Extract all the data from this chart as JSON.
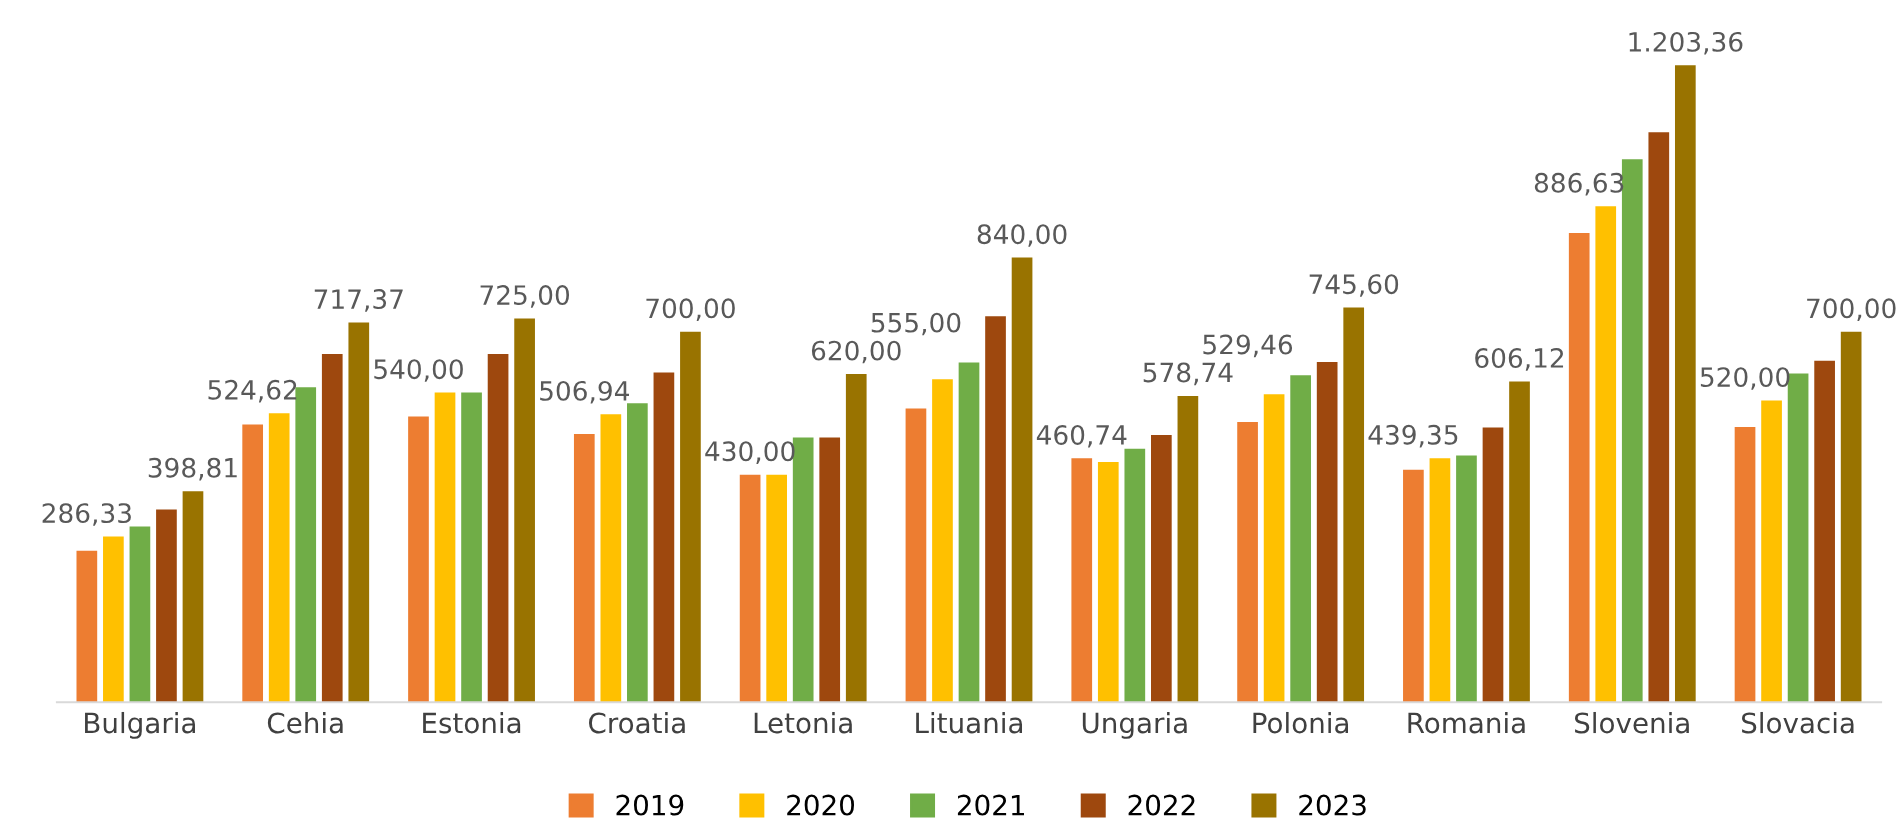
{
  "chart_data": {
    "type": "bar",
    "categories": [
      "Bulgaria",
      "Cehia",
      "Estonia",
      "Croatia",
      "Letonia",
      "Lituania",
      "Ungaria",
      "Polonia",
      "Romania",
      "Slovenia",
      "Slovacia"
    ],
    "legend": "bottom",
    "grid": false,
    "series": [
      {
        "name": "2019",
        "color": "#ed7d31",
        "values": [
          286.33,
          524.62,
          540.0,
          506.94,
          430.0,
          555.0,
          460.74,
          529.46,
          439.35,
          886.63,
          520.0
        ],
        "value_labels": [
          "286,33",
          "524,62",
          "540,00",
          "506,94",
          "430,00",
          "555,00",
          "460,74",
          "529,46",
          "439,35",
          "886,63",
          "520,00"
        ]
      },
      {
        "name": "2020",
        "color": "#ffc000",
        "values": [
          313,
          546,
          585,
          544,
          430,
          610,
          454,
          582,
          461,
          937,
          570
        ]
      },
      {
        "name": "2021",
        "color": "#70ad47",
        "values": [
          332,
          595,
          585,
          565,
          500,
          642,
          479,
          618,
          466,
          1026,
          621
        ]
      },
      {
        "name": "2022",
        "color": "#9e480e",
        "values": [
          364,
          658,
          658,
          623,
          500,
          729,
          505,
          643,
          519,
          1077,
          645
        ]
      },
      {
        "name": "2023",
        "color": "#997300",
        "values": [
          398.81,
          717.37,
          725.0,
          700.0,
          620.0,
          840.0,
          578.74,
          745.6,
          606.12,
          1203.36,
          700.0
        ],
        "value_labels": [
          "398,81",
          "717,37",
          "725,00",
          "700,00",
          "620,00",
          "840,00",
          "578,74",
          "745,60",
          "606,12",
          "1.203,36",
          "700,00"
        ]
      }
    ]
  }
}
